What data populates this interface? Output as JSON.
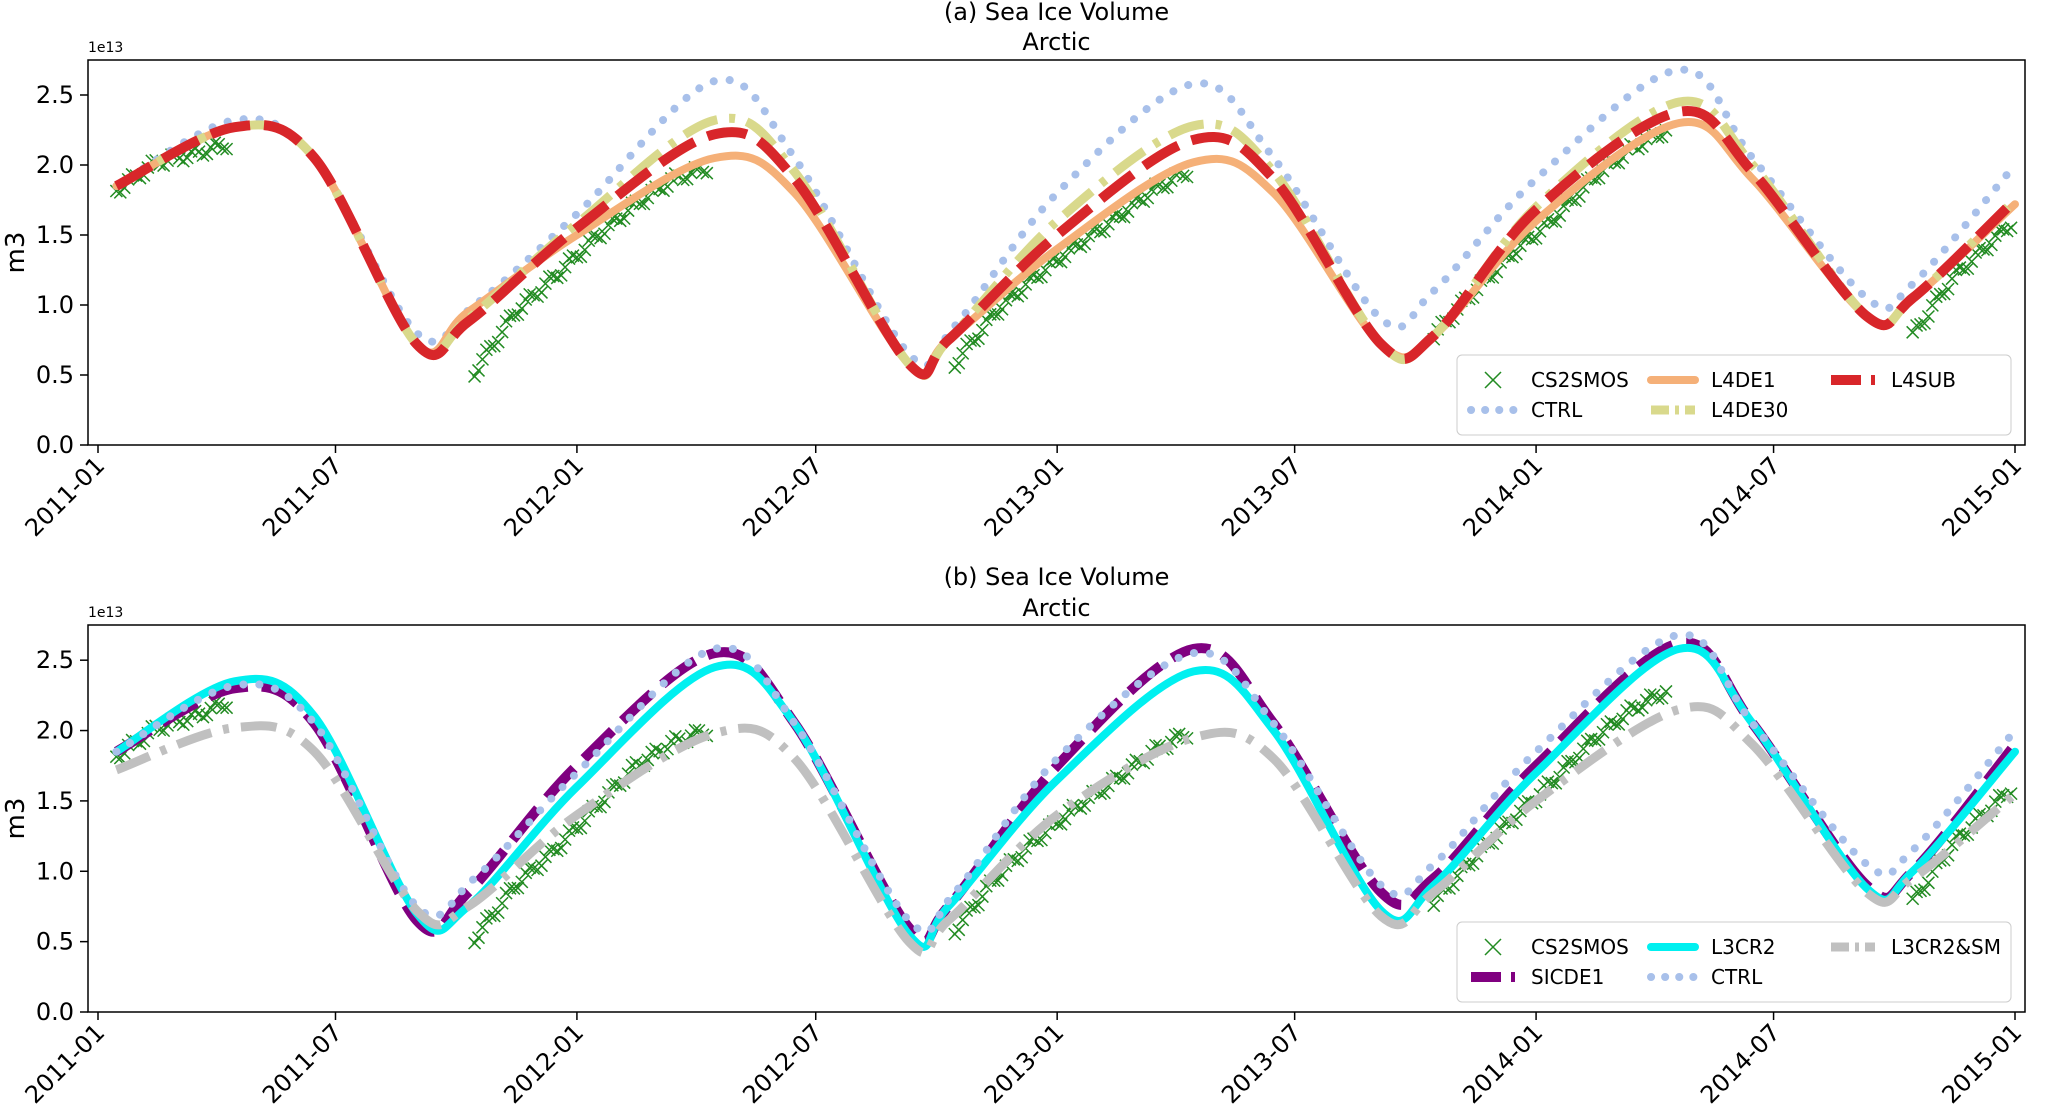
{
  "chart_data": [
    {
      "panel": "a",
      "type": "line",
      "title": "(a)  Sea Ice Volume",
      "subtitle": "Arctic",
      "xlabel": "",
      "ylabel": "m3",
      "y_offset_label": "1e13",
      "x_range": [
        "2011-01-01",
        "2015-01-01"
      ],
      "ylim": [
        0,
        2.75
      ],
      "y_ticks": [
        0.0,
        0.5,
        1.0,
        1.5,
        2.0,
        2.5
      ],
      "y_tick_labels": [
        "0.0",
        "0.5",
        "1.0",
        "1.5",
        "2.0",
        "2.5"
      ],
      "x_ticks": [
        "2011-01-01",
        "2011-07-01",
        "2012-01-01",
        "2012-07-01",
        "2013-01-01",
        "2013-07-01",
        "2014-01-01",
        "2014-07-01",
        "2015-01-01"
      ],
      "x_tick_labels": [
        "2011-01",
        "2011-07",
        "2012-01",
        "2012-07",
        "2013-01",
        "2013-07",
        "2014-01",
        "2014-07",
        "2015-01"
      ],
      "grid": false,
      "legend_position": "bottom-right",
      "legend_columns": 3,
      "legend_order": [
        "CS2SMOS",
        "CTRL",
        "L4DE1",
        "L4DE30",
        "L4SUB"
      ],
      "series": [
        {
          "name": "CS2SMOS",
          "style": "x-markers",
          "color": "#228B22",
          "segments": [
            {
              "x": [
                "2011-01-15",
                "2011-02-15",
                "2011-03-15",
                "2011-04-10"
              ],
              "y": [
                1.82,
                2.02,
                2.08,
                2.15
              ]
            },
            {
              "x": [
                "2011-10-15",
                "2011-11-15",
                "2011-12-15",
                "2012-01-15",
                "2012-02-15",
                "2012-03-15",
                "2012-04-10"
              ],
              "y": [
                0.52,
                0.95,
                1.2,
                1.48,
                1.72,
                1.9,
                1.98
              ]
            },
            {
              "x": [
                "2012-10-15",
                "2012-11-15",
                "2012-12-15",
                "2013-01-15",
                "2013-02-15",
                "2013-03-15",
                "2013-04-10"
              ],
              "y": [
                0.58,
                0.95,
                1.2,
                1.42,
                1.62,
                1.82,
                1.95
              ]
            },
            {
              "x": [
                "2013-10-15",
                "2013-11-15",
                "2013-12-15",
                "2014-01-15",
                "2014-02-15",
                "2014-03-15",
                "2014-04-10"
              ],
              "y": [
                0.78,
                1.1,
                1.38,
                1.62,
                1.92,
                2.12,
                2.25
              ]
            },
            {
              "x": [
                "2014-10-15",
                "2014-11-15",
                "2014-12-31"
              ],
              "y": [
                0.78,
                1.2,
                1.6
              ]
            }
          ]
        },
        {
          "name": "CTRL",
          "style": "dotted",
          "color": "#A8C0EA",
          "x": [
            "2011-01-15",
            "2011-04-15",
            "2011-06-15",
            "2011-09-01",
            "2011-10-15",
            "2012-01-01",
            "2012-04-15",
            "2012-06-15",
            "2012-09-10",
            "2012-10-15",
            "2013-01-01",
            "2013-04-15",
            "2013-06-15",
            "2013-09-05",
            "2013-10-15",
            "2014-01-01",
            "2014-04-20",
            "2014-06-15",
            "2014-09-10",
            "2014-10-15",
            "2015-01-01"
          ],
          "y": [
            1.85,
            2.32,
            2.05,
            0.8,
            1.0,
            1.65,
            2.6,
            2.05,
            0.65,
            0.85,
            1.8,
            2.58,
            2.05,
            0.9,
            1.1,
            1.9,
            2.68,
            2.05,
            1.05,
            1.15,
            2.0
          ]
        },
        {
          "name": "L4DE1",
          "style": "solid",
          "color": "#F5B078",
          "x": [
            "2011-01-15",
            "2011-04-15",
            "2011-06-15",
            "2011-09-01",
            "2011-10-10",
            "2012-01-01",
            "2012-04-15",
            "2012-06-15",
            "2012-09-10",
            "2012-10-10",
            "2013-01-01",
            "2013-04-15",
            "2013-06-15",
            "2013-09-05",
            "2013-10-15",
            "2014-01-01",
            "2014-04-20",
            "2014-06-15",
            "2014-09-10",
            "2014-10-15",
            "2015-01-01"
          ],
          "y": [
            1.85,
            2.27,
            2.05,
            0.72,
            0.95,
            1.5,
            2.05,
            1.8,
            0.58,
            0.75,
            1.4,
            2.02,
            1.8,
            0.72,
            0.78,
            1.6,
            2.3,
            1.9,
            0.92,
            1.05,
            1.72
          ]
        },
        {
          "name": "L4DE30",
          "style": "dash-dot",
          "color": "#D9D98C",
          "x": [
            "2011-01-15",
            "2011-04-15",
            "2011-06-15",
            "2011-09-01",
            "2011-10-10",
            "2012-01-01",
            "2012-04-15",
            "2012-06-15",
            "2012-09-10",
            "2012-10-10",
            "2013-01-01",
            "2013-04-15",
            "2013-06-15",
            "2013-09-05",
            "2013-10-15",
            "2014-01-01",
            "2014-04-20",
            "2014-06-15",
            "2014-09-10",
            "2014-10-15",
            "2015-01-01"
          ],
          "y": [
            1.85,
            2.27,
            2.05,
            0.72,
            0.9,
            1.58,
            2.32,
            1.95,
            0.58,
            0.75,
            1.6,
            2.28,
            1.95,
            0.72,
            0.78,
            1.7,
            2.45,
            2.0,
            0.92,
            1.05,
            1.75
          ]
        },
        {
          "name": "L4SUB",
          "style": "dashed",
          "color": "#D8262A",
          "x": [
            "2011-01-15",
            "2011-04-15",
            "2011-06-15",
            "2011-09-01",
            "2011-10-10",
            "2012-01-01",
            "2012-04-15",
            "2012-06-15",
            "2012-09-10",
            "2012-10-10",
            "2013-01-01",
            "2013-04-15",
            "2013-06-15",
            "2013-09-05",
            "2013-10-15",
            "2014-01-01",
            "2014-04-20",
            "2014-06-15",
            "2014-09-10",
            "2014-10-15",
            "2015-01-01"
          ],
          "y": [
            1.85,
            2.27,
            2.05,
            0.72,
            0.88,
            1.55,
            2.22,
            1.9,
            0.58,
            0.75,
            1.5,
            2.18,
            1.9,
            0.72,
            0.78,
            1.68,
            2.38,
            1.95,
            0.92,
            1.05,
            1.75
          ]
        }
      ]
    },
    {
      "panel": "b",
      "type": "line",
      "title": "(b)  Sea Ice Volume",
      "subtitle": "Arctic",
      "xlabel": "",
      "ylabel": "m3",
      "y_offset_label": "1e13",
      "x_range": [
        "2011-01-01",
        "2015-01-01"
      ],
      "ylim": [
        0,
        2.75
      ],
      "y_ticks": [
        0.0,
        0.5,
        1.0,
        1.5,
        2.0,
        2.5
      ],
      "y_tick_labels": [
        "0.0",
        "0.5",
        "1.0",
        "1.5",
        "2.0",
        "2.5"
      ],
      "x_ticks": [
        "2011-01-01",
        "2011-07-01",
        "2012-01-01",
        "2012-07-01",
        "2013-01-01",
        "2013-07-01",
        "2014-01-01",
        "2014-07-01",
        "2015-01-01"
      ],
      "x_tick_labels": [
        "2011-01",
        "2011-07",
        "2012-01",
        "2012-07",
        "2013-01",
        "2013-07",
        "2014-01",
        "2014-07",
        "2015-01"
      ],
      "grid": false,
      "legend_position": "bottom-right",
      "legend_columns": 3,
      "legend_order": [
        "CS2SMOS",
        "SICDE1",
        "L3CR2",
        "CTRL",
        "L3CR2&SM"
      ],
      "series": [
        {
          "name": "CS2SMOS",
          "style": "x-markers",
          "color": "#228B22",
          "segments": [
            {
              "x": [
                "2011-01-15",
                "2011-02-15",
                "2011-03-15",
                "2011-04-10"
              ],
              "y": [
                1.82,
                2.02,
                2.1,
                2.2
              ]
            },
            {
              "x": [
                "2011-10-15",
                "2011-11-15",
                "2011-12-15",
                "2012-01-15",
                "2012-02-15",
                "2012-03-15",
                "2012-04-10"
              ],
              "y": [
                0.52,
                0.9,
                1.15,
                1.45,
                1.75,
                1.92,
                2.0
              ]
            },
            {
              "x": [
                "2012-10-15",
                "2012-11-15",
                "2012-12-15",
                "2013-01-15",
                "2013-02-15",
                "2013-03-15",
                "2013-04-10"
              ],
              "y": [
                0.58,
                0.95,
                1.22,
                1.45,
                1.65,
                1.85,
                1.98
              ]
            },
            {
              "x": [
                "2013-10-15",
                "2013-11-15",
                "2013-12-15",
                "2014-01-15",
                "2014-02-15",
                "2014-03-15",
                "2014-04-10"
              ],
              "y": [
                0.78,
                1.1,
                1.38,
                1.65,
                1.95,
                2.15,
                2.28
              ]
            },
            {
              "x": [
                "2014-10-15",
                "2014-11-15",
                "2014-12-31"
              ],
              "y": [
                0.78,
                1.2,
                1.6
              ]
            }
          ]
        },
        {
          "name": "SICDE1",
          "style": "dashed",
          "color": "#800080",
          "x": [
            "2011-01-15",
            "2011-04-15",
            "2011-06-15",
            "2011-09-01",
            "2011-10-10",
            "2012-01-01",
            "2012-04-15",
            "2012-06-15",
            "2012-09-10",
            "2012-10-10",
            "2013-01-01",
            "2013-04-15",
            "2013-06-15",
            "2013-09-05",
            "2013-10-15",
            "2014-01-01",
            "2014-04-20",
            "2014-06-15",
            "2014-09-10",
            "2014-10-15",
            "2015-01-01"
          ],
          "y": [
            1.85,
            2.3,
            2.05,
            0.65,
            0.85,
            1.75,
            2.55,
            2.05,
            0.6,
            0.75,
            1.75,
            2.58,
            2.05,
            0.85,
            0.95,
            1.75,
            2.62,
            2.05,
            0.9,
            1.0,
            1.9
          ]
        },
        {
          "name": "L3CR2",
          "style": "solid",
          "color": "#00F0F0",
          "x": [
            "2011-01-15",
            "2011-04-15",
            "2011-06-15",
            "2011-09-01",
            "2011-10-10",
            "2012-01-01",
            "2012-04-15",
            "2012-06-15",
            "2012-09-10",
            "2012-10-10",
            "2013-01-01",
            "2013-04-15",
            "2013-06-15",
            "2013-09-05",
            "2013-10-15",
            "2014-01-01",
            "2014-04-20",
            "2014-06-15",
            "2014-09-10",
            "2014-10-15",
            "2015-01-01"
          ],
          "y": [
            1.85,
            2.35,
            2.1,
            0.7,
            0.75,
            1.6,
            2.45,
            2.05,
            0.55,
            0.75,
            1.65,
            2.42,
            2.0,
            0.72,
            0.9,
            1.7,
            2.58,
            2.05,
            0.88,
            1.0,
            1.85
          ]
        },
        {
          "name": "CTRL",
          "style": "dotted",
          "color": "#A8C0EA",
          "x": [
            "2011-01-15",
            "2011-04-15",
            "2011-06-15",
            "2011-09-01",
            "2011-10-15",
            "2012-01-01",
            "2012-04-15",
            "2012-06-15",
            "2012-09-10",
            "2012-10-15",
            "2013-01-01",
            "2013-04-15",
            "2013-06-15",
            "2013-09-05",
            "2013-10-15",
            "2014-01-01",
            "2014-04-20",
            "2014-06-15",
            "2014-09-10",
            "2014-10-15",
            "2015-01-01"
          ],
          "y": [
            1.85,
            2.32,
            2.05,
            0.75,
            0.95,
            1.7,
            2.58,
            2.05,
            0.65,
            0.85,
            1.8,
            2.55,
            2.05,
            0.9,
            1.05,
            1.85,
            2.68,
            2.05,
            1.05,
            1.15,
            2.0
          ]
        },
        {
          "name": "L3CR2&SM",
          "style": "dash-dot",
          "color": "#C0C0C0",
          "x": [
            "2011-01-15",
            "2011-04-15",
            "2011-06-15",
            "2011-09-01",
            "2011-10-10",
            "2012-01-01",
            "2012-04-15",
            "2012-06-15",
            "2012-09-10",
            "2012-10-10",
            "2013-01-01",
            "2013-04-15",
            "2013-06-15",
            "2013-09-05",
            "2013-10-15",
            "2014-01-01",
            "2014-04-20",
            "2014-06-15",
            "2014-09-10",
            "2014-10-15",
            "2015-01-01"
          ],
          "y": [
            1.72,
            2.02,
            1.85,
            0.72,
            0.75,
            1.4,
            1.98,
            1.8,
            0.5,
            0.65,
            1.4,
            1.95,
            1.8,
            0.68,
            0.85,
            1.5,
            2.15,
            1.9,
            0.85,
            0.95,
            1.55
          ]
        }
      ]
    }
  ]
}
